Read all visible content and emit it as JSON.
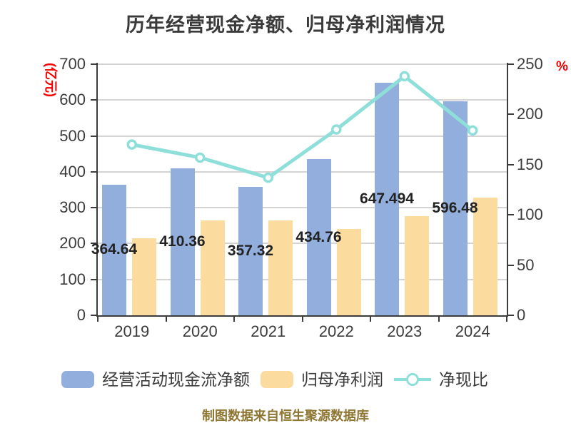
{
  "title": "历年经营现金净额、归母净利润情况",
  "footer": "制图数据来自恒生聚源数据库",
  "colors": {
    "background": "#FFFFFF",
    "title_text": "#3A3A3A",
    "axis_text": "#3C3C3C",
    "grid": "#D4D4D4",
    "axis_line": "#3C3C3C",
    "axis_unit_red": "#F80000",
    "bar_cash": "#92AEDC",
    "bar_profit": "#FBDC9E",
    "line_ratio": "#8EDFDA",
    "marker_fill": "#FFFFFF",
    "data_label": "#222222",
    "footer_text": "#8E7633"
  },
  "left_axis": {
    "unit": "(亿元)",
    "min": 0,
    "max": 700,
    "step": 100,
    "ticks": [
      "0",
      "100",
      "200",
      "300",
      "400",
      "500",
      "600",
      "700"
    ]
  },
  "right_axis": {
    "unit": "%",
    "min": 0,
    "max": 250,
    "step": 50,
    "ticks": [
      "0",
      "50",
      "100",
      "150",
      "200",
      "250"
    ]
  },
  "chart_data": {
    "type": "bar",
    "subtype": "grouped-bars-with-line",
    "title": "历年经营现金净额、归母净利润情况",
    "categories": [
      "2019",
      "2020",
      "2021",
      "2022",
      "2023",
      "2024"
    ],
    "series": [
      {
        "name": "经营活动现金流净额",
        "chart_type": "bar",
        "axis": "left",
        "color": "#92AEDC",
        "values": [
          364.64,
          410.36,
          357.32,
          434.76,
          647.494,
          596.48
        ],
        "data_labels": [
          "364.64",
          "410.36",
          "357.32",
          "434.76",
          "647.494",
          "596.48"
        ]
      },
      {
        "name": "归母净利润",
        "chart_type": "bar",
        "axis": "left",
        "color": "#FBDC9E",
        "values": [
          215,
          264,
          264,
          241,
          276,
          328
        ]
      },
      {
        "name": "净现比",
        "chart_type": "line",
        "axis": "right",
        "color": "#8EDFDA",
        "values": [
          170,
          157,
          137,
          185,
          238,
          184
        ]
      }
    ],
    "left_ylim": [
      0,
      700
    ],
    "right_ylim": [
      0,
      250
    ],
    "grid": true,
    "legend_position": "bottom"
  },
  "legend": {
    "items": [
      {
        "label": "经营活动现金流净额",
        "swatch": "bar-blue"
      },
      {
        "label": "归母净利润",
        "swatch": "bar-yellow"
      },
      {
        "label": "净现比",
        "swatch": "line-circle"
      }
    ]
  }
}
